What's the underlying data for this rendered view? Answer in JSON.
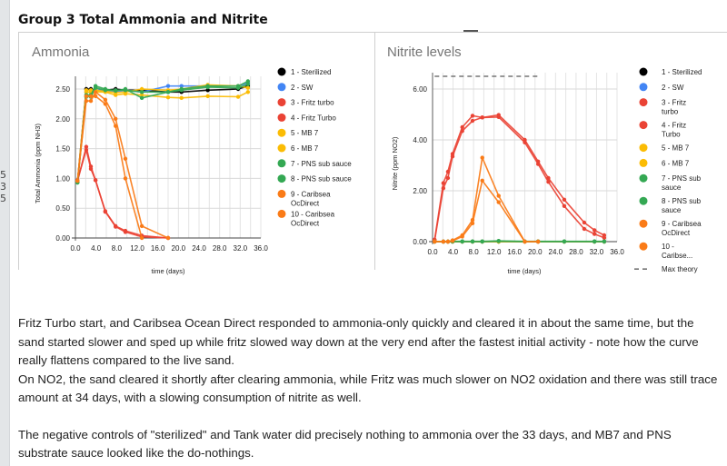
{
  "page": {
    "title": "Group 3 Total Ammonia and Nitrite",
    "gutter_numbers": [
      "5",
      "3",
      "5"
    ],
    "gutter_chip_colors": [
      "#f57c00",
      "#222222",
      "#3b6fd8",
      "#1b6b1b",
      "#b9f0b0"
    ]
  },
  "body": {
    "paragraphs": [
      "Fritz Turbo start, and Caribsea Ocean Direct responded to ammonia-only quickly and cleared it in about the same time, but the sand started slower and sped up while fritz slowed way down at the very end after the fastest initial activity - note how the curve really flattens compared to the live sand.",
      "On NO2, the sand cleared it shortly after clearing ammonia, while Fritz was much slower on NO2 oxidation and there was still trace amount at 34 days, with a slowing consumption of nitrite as well.",
      "The negative controls of \"sterilized\" and Tank water did precisely nothing to ammonia over the 33 days, and MB7 and PNS substrate sauce looked like the do-nothings."
    ]
  },
  "colors": {
    "sterilized": "#000000",
    "sw": "#4285f4",
    "fritz": "#ea4335",
    "mb7": "#fbbc04",
    "pns": "#34a853",
    "caribsea": "#fa7b17",
    "max_theory": "#757575"
  },
  "chart_data": [
    {
      "type": "line",
      "title": "Ammonia",
      "xlabel": "time (days)",
      "ylabel": "Total Ammonia (ppm NH3)",
      "xlim": [
        0,
        36
      ],
      "ylim": [
        0,
        2.5
      ],
      "x_ticks": [
        "0.0",
        "4.0",
        "8.0",
        "12.0",
        "16.0",
        "20.0",
        "24.0",
        "28.0",
        "32.0",
        "36.0"
      ],
      "y_ticks": [
        "0.00",
        "0.50",
        "1.00",
        "1.50",
        "2.00",
        "2.50"
      ],
      "grid": true,
      "legend_position": "right",
      "series": [
        {
          "name": "1 - Sterilized",
          "color": "#000000",
          "x": [
            0.4,
            2.1,
            3.0,
            3.9,
            5.8,
            7.8,
            9.7,
            12.9,
            18.0,
            20.6,
            25.7,
            31.6,
            33.5
          ],
          "y": [
            0.95,
            2.5,
            2.5,
            2.48,
            2.48,
            2.5,
            2.48,
            2.48,
            2.45,
            2.45,
            2.48,
            2.5,
            2.55
          ]
        },
        {
          "name": "2 - SW",
          "color": "#4285f4",
          "x": [
            0.4,
            2.1,
            3.0,
            3.9,
            5.8,
            7.8,
            9.7,
            12.9,
            18.0,
            20.6,
            25.7,
            31.6,
            33.5
          ],
          "y": [
            0.95,
            2.45,
            2.45,
            2.48,
            2.48,
            2.45,
            2.48,
            2.45,
            2.55,
            2.55,
            2.55,
            2.55,
            2.6
          ]
        },
        {
          "name": "3 - Fritz turbo",
          "color": "#ea4335",
          "x": [
            0.4,
            2.1,
            3.0,
            3.9,
            5.8,
            7.8,
            9.7,
            12.9,
            18.0
          ],
          "y": [
            0.95,
            1.53,
            1.2,
            0.97,
            0.45,
            0.2,
            0.12,
            0.04,
            0.0
          ]
        },
        {
          "name": "4 - Fritz Turbo",
          "color": "#ea4335",
          "x": [
            0.4,
            2.1,
            3.0,
            3.9,
            5.8,
            7.8,
            9.7,
            12.9,
            18.0
          ],
          "y": [
            0.97,
            1.48,
            1.16,
            0.97,
            0.44,
            0.19,
            0.1,
            0.02,
            0.0
          ]
        },
        {
          "name": "5 - MB 7",
          "color": "#fbbc04",
          "x": [
            0.4,
            2.1,
            3.0,
            3.9,
            5.8,
            7.8,
            9.7,
            12.9,
            18.0,
            20.6,
            25.7,
            31.6,
            33.5
          ],
          "y": [
            0.95,
            2.45,
            2.45,
            2.45,
            2.45,
            2.4,
            2.42,
            2.4,
            2.36,
            2.35,
            2.38,
            2.37,
            2.45
          ]
        },
        {
          "name": "6 - MB 7",
          "color": "#fbbc04",
          "x": [
            0.4,
            2.1,
            3.0,
            3.9,
            5.8,
            7.8,
            9.7,
            12.9,
            18.0,
            20.6,
            25.7,
            31.6,
            33.5
          ],
          "y": [
            0.95,
            2.48,
            2.48,
            2.48,
            2.46,
            2.44,
            2.45,
            2.5,
            2.48,
            2.5,
            2.57,
            2.55,
            2.52
          ]
        },
        {
          "name": "7 - PNS sub sauce",
          "color": "#34a853",
          "x": [
            0.4,
            2.1,
            3.0,
            3.9,
            5.8,
            7.8,
            9.7,
            12.9,
            18.0,
            20.6,
            25.7,
            31.6,
            33.5
          ],
          "y": [
            0.93,
            2.4,
            2.4,
            2.55,
            2.5,
            2.47,
            2.5,
            2.35,
            2.45,
            2.5,
            2.55,
            2.55,
            2.63
          ]
        },
        {
          "name": "8 - PNS sub sauce",
          "color": "#34a853",
          "x": [
            0.4,
            2.1,
            3.0,
            3.9,
            5.8,
            7.8,
            9.7,
            12.9,
            18.0,
            20.6,
            25.7,
            31.6,
            33.5
          ],
          "y": [
            0.93,
            2.37,
            2.37,
            2.52,
            2.48,
            2.48,
            2.48,
            2.45,
            2.45,
            2.48,
            2.53,
            2.52,
            2.58
          ]
        },
        {
          "name": "9 - Caribsea OcDirect",
          "color": "#fa7b17",
          "x": [
            0.4,
            2.1,
            3.0,
            3.9,
            5.8,
            7.8,
            9.7,
            12.9,
            18.0
          ],
          "y": [
            0.96,
            2.3,
            2.3,
            2.45,
            2.32,
            2.0,
            1.33,
            0.2,
            0.0
          ]
        },
        {
          "name": "10 - Caribsea OcDirect",
          "color": "#fa7b17",
          "x": [
            0.4,
            2.1,
            3.0,
            3.9,
            5.8,
            7.8,
            9.7,
            12.9
          ],
          "y": [
            0.96,
            2.38,
            2.38,
            2.38,
            2.25,
            1.88,
            1.0,
            0.0
          ]
        }
      ]
    },
    {
      "type": "line",
      "title": "Nitrite levels",
      "xlabel": "time (days)",
      "ylabel": "Nitrite (ppm NO2)",
      "xlim": [
        0,
        36
      ],
      "ylim": [
        0,
        6
      ],
      "x_ticks": [
        "0.0",
        "4.0",
        "8.0",
        "12.0",
        "16.0",
        "20.0",
        "24.0",
        "28.0",
        "32.0",
        "36.0"
      ],
      "y_ticks": [
        "0.00",
        "2.00",
        "4.00",
        "6.00"
      ],
      "grid": true,
      "legend_position": "right",
      "series": [
        {
          "name": "1 - Sterilized",
          "color": "#000000",
          "x": [
            0.4,
            2.1,
            3.0,
            3.9,
            5.8,
            7.8,
            9.7,
            12.9,
            18.0,
            20.6,
            25.7,
            31.6,
            33.5
          ],
          "y": [
            0,
            0,
            0,
            0,
            0,
            0,
            0,
            0,
            0,
            0,
            0,
            0,
            0
          ]
        },
        {
          "name": "2 - SW",
          "color": "#4285f4",
          "x": [
            0.4,
            2.1,
            3.0,
            3.9,
            5.8,
            7.8,
            9.7,
            12.9,
            18.0,
            20.6,
            25.7,
            31.6,
            33.5
          ],
          "y": [
            0,
            0,
            0,
            0,
            0,
            0,
            0,
            0,
            0,
            0,
            0,
            0,
            0
          ]
        },
        {
          "name": "3 - Fritz turbo",
          "color": "#ea4335",
          "x": [
            0.4,
            2.1,
            3.0,
            3.9,
            5.8,
            7.8,
            9.7,
            12.9,
            18.0,
            20.6,
            22.6,
            25.7,
            29.6,
            31.6,
            33.5
          ],
          "y": [
            0.08,
            2.3,
            2.75,
            3.45,
            4.5,
            4.95,
            4.88,
            4.98,
            4.0,
            3.15,
            2.5,
            1.65,
            0.75,
            0.45,
            0.25
          ]
        },
        {
          "name": "4 - Fritz Turbo",
          "color": "#ea4335",
          "x": [
            0.4,
            2.1,
            3.0,
            3.9,
            5.8,
            7.8,
            9.7,
            12.9,
            18.0,
            20.6,
            22.6,
            25.7,
            29.6,
            31.6,
            33.5
          ],
          "y": [
            0.05,
            2.1,
            2.5,
            3.35,
            4.35,
            4.75,
            4.88,
            4.9,
            3.9,
            3.05,
            2.35,
            1.4,
            0.5,
            0.3,
            0.15
          ]
        },
        {
          "name": "5 - MB 7",
          "color": "#fbbc04",
          "x": [
            0.4,
            2.1,
            3.0,
            3.9,
            5.8,
            7.8,
            9.7,
            12.9,
            18.0,
            20.6,
            25.7,
            31.6,
            33.5
          ],
          "y": [
            0,
            0,
            0,
            0,
            0,
            0,
            0,
            0,
            0,
            0,
            0,
            0,
            0
          ]
        },
        {
          "name": "6 - MB 7",
          "color": "#fbbc04",
          "x": [
            0.4,
            2.1,
            3.0,
            3.9,
            5.8,
            7.8,
            9.7,
            12.9,
            18.0,
            20.6,
            25.7,
            31.6,
            33.5
          ],
          "y": [
            0,
            0,
            0,
            0,
            0,
            0,
            0,
            0,
            0,
            0,
            0,
            0,
            0
          ]
        },
        {
          "name": "7 - PNS sub sauce",
          "color": "#34a853",
          "x": [
            0.4,
            2.1,
            3.0,
            3.9,
            5.8,
            7.8,
            9.7,
            12.9,
            18.0,
            20.6,
            25.7,
            31.6,
            33.5
          ],
          "y": [
            0,
            0,
            0,
            0.01,
            0.01,
            0.01,
            0.01,
            0.03,
            0.01,
            0.01,
            0.01,
            0.01,
            0.01
          ]
        },
        {
          "name": "8 - PNS sub sauce",
          "color": "#34a853",
          "x": [
            0.4,
            2.1,
            3.0,
            3.9,
            5.8,
            7.8,
            9.7,
            12.9,
            18.0,
            20.6,
            25.7,
            31.6,
            33.5
          ],
          "y": [
            0,
            0,
            0,
            0,
            0,
            0,
            0,
            0.02,
            0,
            0,
            0,
            0,
            0
          ]
        },
        {
          "name": "9 - Caribsea OcDirect",
          "color": "#fa7b17",
          "x": [
            0.4,
            2.1,
            3.0,
            3.9,
            5.8,
            7.8,
            9.7,
            12.9,
            18.0,
            20.6
          ],
          "y": [
            0,
            0,
            0,
            0.05,
            0.25,
            0.85,
            3.3,
            1.8,
            0,
            0
          ]
        },
        {
          "name": "10 - Caribsea OcDirect",
          "color": "#fa7b17",
          "x": [
            0.4,
            2.1,
            3.0,
            3.9,
            5.8,
            7.8,
            9.7,
            12.9,
            18.0,
            20.6
          ],
          "y": [
            0,
            0,
            0,
            0.03,
            0.2,
            0.72,
            2.4,
            1.55,
            0,
            0
          ]
        },
        {
          "name": "Max theory",
          "color": "#757575",
          "dashed": true,
          "x": [
            0.4,
            20.6
          ],
          "y": [
            6.5,
            6.5
          ]
        }
      ],
      "legend_labels": [
        "1 - Sterilized",
        "2 - SW",
        "3 - Fritz turbo",
        "4 - Fritz Turbo",
        "5 - MB 7",
        "6 - MB 7",
        "7 - PNS sub sauce",
        "8 - PNS sub sauce",
        "9 - Caribsea OcDirect",
        "10 - Caribse...",
        "Max theory"
      ]
    }
  ]
}
